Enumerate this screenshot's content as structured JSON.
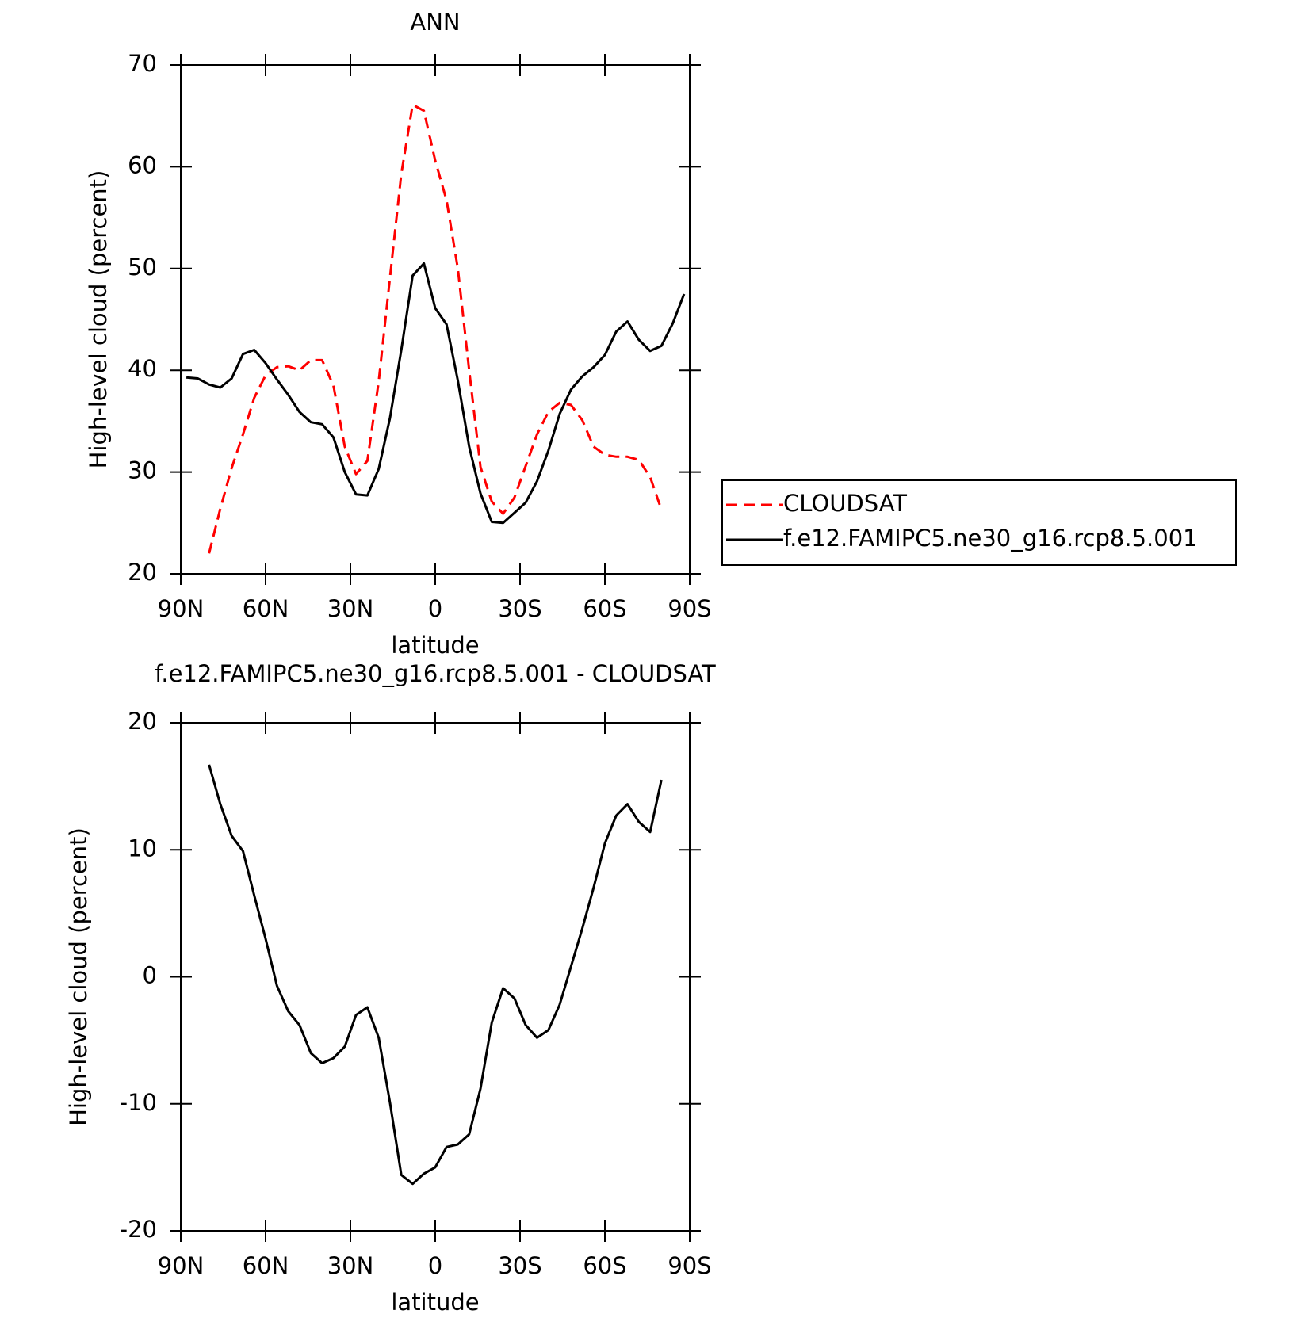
{
  "chart_data": [
    {
      "type": "line",
      "title": "ANN",
      "xlabel": "latitude",
      "ylabel": "High-level cloud (percent)",
      "x": [
        88,
        84,
        80,
        76,
        72,
        68,
        64,
        60,
        56,
        52,
        48,
        44,
        40,
        36,
        32,
        28,
        24,
        20,
        16,
        12,
        8,
        4,
        0,
        -4,
        -8,
        -12,
        -16,
        -20,
        -24,
        -28,
        -32,
        -36,
        -40,
        -44,
        -48,
        -52,
        -56,
        -60,
        -64,
        -68,
        -72,
        -76,
        -80,
        -84,
        -88
      ],
      "series": [
        {
          "name": "CLOUDSAT",
          "color": "#ff0000",
          "dash": "dashed",
          "values": [
            null,
            null,
            22.0,
            26.4,
            30.4,
            33.7,
            37.3,
            39.5,
            40.3,
            40.4,
            40.0,
            41.0,
            41.0,
            38.5,
            32.5,
            29.8,
            31.1,
            38.9,
            49.1,
            59.3,
            66.1,
            65.5,
            60.6,
            56.7,
            50.0,
            40.0,
            30.5,
            27.1,
            25.9,
            27.5,
            30.6,
            33.7,
            35.9,
            36.8,
            36.6,
            35.1,
            32.5,
            31.7,
            31.5,
            31.5,
            31.2,
            29.5,
            26.3,
            null,
            null
          ]
        },
        {
          "name": "f.e12.FAMIPC5.ne30_g16.rcp8.5.001",
          "color": "#000000",
          "dash": "solid",
          "values": [
            39.3,
            39.2,
            38.6,
            38.3,
            39.2,
            41.6,
            42.0,
            40.7,
            39.1,
            37.6,
            35.9,
            34.9,
            34.7,
            33.4,
            30.0,
            27.8,
            27.7,
            30.3,
            35.3,
            42.0,
            49.3,
            50.5,
            46.1,
            44.5,
            39.0,
            32.5,
            27.9,
            25.1,
            25.0,
            26.0,
            27.0,
            29.1,
            32.1,
            35.7,
            38.1,
            39.4,
            40.3,
            41.5,
            43.8,
            44.8,
            43.0,
            41.9,
            42.4,
            44.6,
            47.5
          ]
        }
      ],
      "xlim": [
        90,
        -90
      ],
      "xticks": [
        {
          "value": 90,
          "label": "90N"
        },
        {
          "value": 60,
          "label": "60N"
        },
        {
          "value": 30,
          "label": "30N"
        },
        0,
        {
          "value": -30,
          "label": "30S"
        },
        {
          "value": -60,
          "label": "60S"
        },
        {
          "value": -90,
          "label": "90S"
        }
      ],
      "ylim": [
        20,
        70
      ],
      "yticks": [
        20,
        30,
        40,
        50,
        60,
        70
      ],
      "legend": "outside-right"
    },
    {
      "type": "line",
      "title": "f.e12.FAMIPC5.ne30_g16.rcp8.5.001 - CLOUDSAT",
      "xlabel": "latitude",
      "ylabel": "High-level cloud (percent)",
      "x": [
        88,
        84,
        80,
        76,
        72,
        68,
        64,
        60,
        56,
        52,
        48,
        44,
        40,
        36,
        32,
        28,
        24,
        20,
        16,
        12,
        8,
        4,
        0,
        -4,
        -8,
        -12,
        -16,
        -20,
        -24,
        -28,
        -32,
        -36,
        -40,
        -44,
        -48,
        -52,
        -56,
        -60,
        -64,
        -68,
        -72,
        -76,
        -80,
        -84,
        -88
      ],
      "series": [
        {
          "color": "#000000",
          "dash": "solid",
          "values": [
            null,
            null,
            16.7,
            13.6,
            11.1,
            9.9,
            6.4,
            3.0,
            -0.7,
            -2.7,
            -3.8,
            -6.0,
            -6.8,
            -6.4,
            -5.5,
            -3.0,
            -2.4,
            -4.8,
            -9.9,
            -15.6,
            -16.3,
            -15.5,
            -15.0,
            -13.4,
            -13.2,
            -12.4,
            -8.8,
            -3.6,
            -0.9,
            -1.7,
            -3.8,
            -4.8,
            -4.2,
            -2.2,
            0.8,
            3.8,
            7.0,
            10.5,
            12.7,
            13.6,
            12.2,
            11.4,
            15.5,
            null,
            null
          ]
        }
      ],
      "xlim": [
        90,
        -90
      ],
      "xticks": [
        {
          "value": 90,
          "label": "90N"
        },
        {
          "value": 60,
          "label": "60N"
        },
        {
          "value": 30,
          "label": "30N"
        },
        0,
        {
          "value": -30,
          "label": "30S"
        },
        {
          "value": -60,
          "label": "60S"
        },
        {
          "value": -90,
          "label": "90S"
        }
      ],
      "ylim": [
        -20,
        20
      ],
      "yticks": [
        -20,
        -10,
        0,
        10,
        20
      ]
    }
  ]
}
